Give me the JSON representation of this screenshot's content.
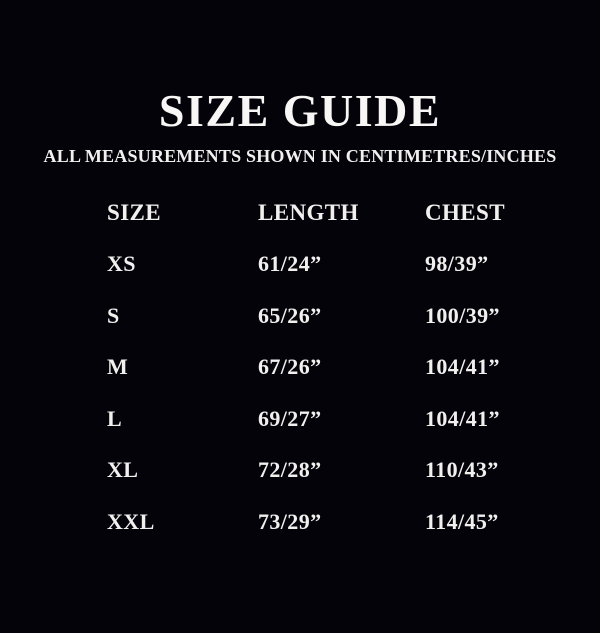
{
  "page": {
    "background_color": "#030309",
    "text_color": "#f2f0ee",
    "title_color": "#f8f7f5"
  },
  "header": {
    "title": "SIZE GUIDE",
    "subtitle": "ALL MEASUREMENTS SHOWN IN CENTIMETRES/INCHES"
  },
  "table": {
    "columns": [
      "SIZE",
      "LENGTH",
      "CHEST"
    ],
    "rows": [
      {
        "size": "XS",
        "length": "61/24”",
        "chest": "98/39”"
      },
      {
        "size": "S",
        "length": "65/26”",
        "chest": "100/39”"
      },
      {
        "size": "M",
        "length": "67/26”",
        "chest": "104/41”"
      },
      {
        "size": "L",
        "length": "69/27”",
        "chest": "104/41”"
      },
      {
        "size": "XL",
        "length": "72/28”",
        "chest": "110/43”"
      },
      {
        "size": "XXL",
        "length": "73/29”",
        "chest": "114/45”"
      }
    ]
  },
  "chart_data": {
    "type": "table",
    "title": "SIZE GUIDE",
    "subtitle": "ALL MEASUREMENTS SHOWN IN CENTIMETRES/INCHES",
    "columns": [
      "SIZE",
      "LENGTH",
      "CHEST"
    ],
    "rows": [
      [
        "XS",
        "61/24”",
        "98/39”"
      ],
      [
        "S",
        "65/26”",
        "100/39”"
      ],
      [
        "M",
        "67/26”",
        "104/41”"
      ],
      [
        "L",
        "69/27”",
        "104/41”"
      ],
      [
        "XL",
        "72/28”",
        "110/43”"
      ],
      [
        "XXL",
        "73/29”",
        "114/45”"
      ]
    ]
  }
}
